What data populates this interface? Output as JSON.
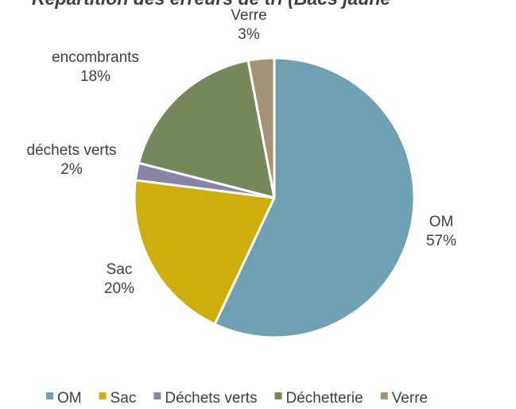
{
  "chart_data": {
    "type": "pie",
    "title": "Répartition des erreurs de tri (Bacs jaune",
    "categories": [
      "OM",
      "Sac",
      "Déchets verts",
      "Déchetterie",
      "Verre"
    ],
    "labels": [
      "OM",
      "Sac",
      "déchets verts",
      "encombrants",
      "Verre"
    ],
    "values": [
      57,
      20,
      2,
      18,
      3
    ],
    "value_labels": [
      "57%",
      "20%",
      "2%",
      "18%",
      "3%"
    ],
    "colors": [
      "#6fa1b2",
      "#cdae0c",
      "#8a84a6",
      "#77875c",
      "#a39379"
    ],
    "legend": "bottom"
  }
}
